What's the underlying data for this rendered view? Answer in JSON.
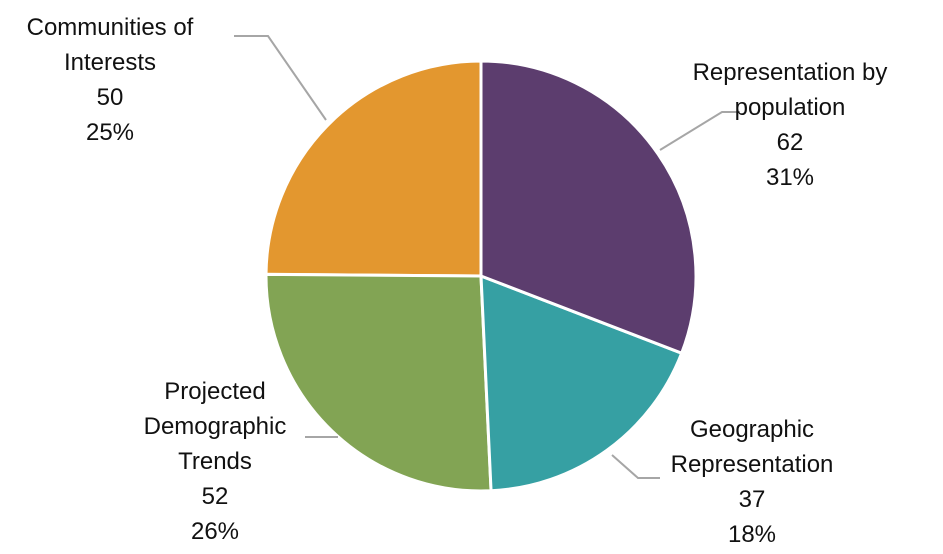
{
  "chart_data": {
    "type": "pie",
    "categories": [
      "Representation by population",
      "Geographic Representation",
      "Projected Demographic Trends",
      "Communities of Interests"
    ],
    "values": [
      62,
      37,
      52,
      50
    ],
    "percent_labels": [
      "31%",
      "18%",
      "26%",
      "25%"
    ],
    "colors": [
      "#5c3d6e",
      "#36a0a3",
      "#82a454",
      "#e3972f"
    ]
  }
}
